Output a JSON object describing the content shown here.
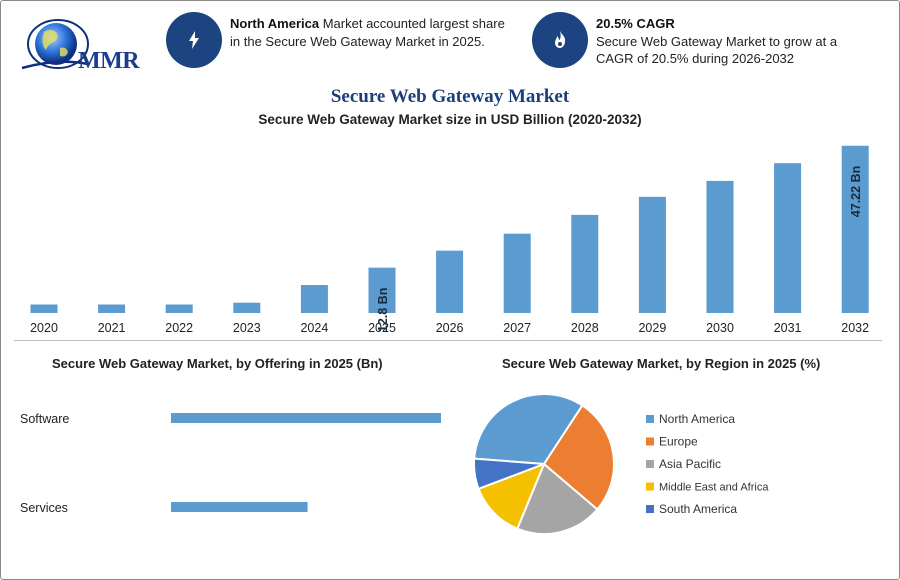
{
  "logo": {
    "text": "MMR"
  },
  "highlights": [
    {
      "icon": "lightning-icon",
      "bold": "North America",
      "text": " Market accounted largest share in the Secure Web Gateway Market in 2025."
    },
    {
      "icon": "flame-icon",
      "bold": "20.5% CAGR",
      "text": "Secure Web Gateway Market to grow at a CAGR of 20.5% during 2026-2032"
    }
  ],
  "page_title": "Secure Web Gateway Market",
  "colors": {
    "bar": "#5b9bd0",
    "accent": "#1c4480",
    "title": "#1c3f7a"
  },
  "chart_data": [
    {
      "type": "bar",
      "title": "Secure Web Gateway Market size in USD Billion (2020-2032)",
      "categories": [
        "2020",
        "2021",
        "2022",
        "2023",
        "2024",
        "2025",
        "2026",
        "2027",
        "2028",
        "2029",
        "2030",
        "2031",
        "2032"
      ],
      "values": [
        2.4,
        2.4,
        2.4,
        2.9,
        7.9,
        12.8,
        17.6,
        22.4,
        27.7,
        32.8,
        37.3,
        42.3,
        47.22
      ],
      "data_labels": {
        "2025": "12.8 Bn",
        "2032": "47.22 Bn"
      },
      "ylim": [
        0,
        48
      ]
    },
    {
      "type": "bar",
      "orientation": "horizontal",
      "title": "Secure Web Gateway Market, by Offering in 2025 (Bn)",
      "categories": [
        "Software",
        "Services"
      ],
      "values": [
        8.5,
        4.3
      ]
    },
    {
      "type": "pie",
      "title": "Secure Web Gateway Market, by Region in 2025 (%)",
      "legend_position": "right",
      "slices": [
        {
          "label": "North America",
          "value": 33,
          "color": "#5b9bd0"
        },
        {
          "label": "Europe",
          "value": 27,
          "color": "#ed7d31"
        },
        {
          "label": "Asia Pacific",
          "value": 20,
          "color": "#a5a5a5"
        },
        {
          "label": "Middle East and Africa",
          "value": 13,
          "color": "#f5c000"
        },
        {
          "label": "South America",
          "value": 7,
          "color": "#4472c4"
        }
      ]
    }
  ]
}
